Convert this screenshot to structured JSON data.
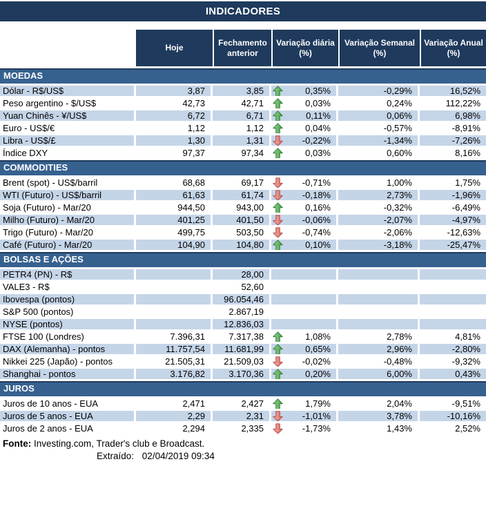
{
  "title": "INDICADORES",
  "columns": [
    "Hoje",
    "Fechamento anterior",
    "Variação diária (%)",
    "Variação Semanal (%)",
    "Variação Anual (%)"
  ],
  "sections": [
    {
      "name": "MOEDAS",
      "rows": [
        {
          "label": "Dólar - R$/US$",
          "hoje": "3,87",
          "fechamento": "3,85",
          "arrow": "up",
          "diaria": "0,35%",
          "semanal": "-0,29%",
          "anual": "16,52%"
        },
        {
          "label": "Peso argentino - $/US$",
          "hoje": "42,73",
          "fechamento": "42,71",
          "arrow": "up",
          "diaria": "0,03%",
          "semanal": "0,24%",
          "anual": "112,22%"
        },
        {
          "label": "Yuan Chinês - ¥/US$",
          "hoje": "6,72",
          "fechamento": "6,71",
          "arrow": "up",
          "diaria": "0,11%",
          "semanal": "0,06%",
          "anual": "6,98%"
        },
        {
          "label": "Euro - US$/€",
          "hoje": "1,12",
          "fechamento": "1,12",
          "arrow": "up",
          "diaria": "0,04%",
          "semanal": "-0,57%",
          "anual": "-8,91%"
        },
        {
          "label": "Libra - US$/£",
          "hoje": "1,30",
          "fechamento": "1,31",
          "arrow": "down",
          "diaria": "-0,22%",
          "semanal": "-1,34%",
          "anual": "-7,26%"
        },
        {
          "label": "Índice DXY",
          "hoje": "97,37",
          "fechamento": "97,34",
          "arrow": "up",
          "diaria": "0,03%",
          "semanal": "0,60%",
          "anual": "8,16%"
        }
      ]
    },
    {
      "name": "COMMODITIES",
      "rows": [
        {
          "label": "Brent (spot) - US$/barril",
          "hoje": "68,68",
          "fechamento": "69,17",
          "arrow": "down",
          "diaria": "-0,71%",
          "semanal": "1,00%",
          "anual": "1,75%"
        },
        {
          "label": "WTI (Futuro) - US$/barril",
          "hoje": "61,63",
          "fechamento": "61,74",
          "arrow": "down",
          "diaria": "-0,18%",
          "semanal": "2,73%",
          "anual": "-1,96%"
        },
        {
          "label": "Soja (Futuro) - Mar/20",
          "hoje": "944,50",
          "fechamento": "943,00",
          "arrow": "up",
          "diaria": "0,16%",
          "semanal": "-0,32%",
          "anual": "-6,49%"
        },
        {
          "label": "Milho (Futuro) - Mar/20",
          "hoje": "401,25",
          "fechamento": "401,50",
          "arrow": "down",
          "diaria": "-0,06%",
          "semanal": "-2,07%",
          "anual": "-4,97%"
        },
        {
          "label": "Trigo (Futuro) - Mar/20",
          "hoje": "499,75",
          "fechamento": "503,50",
          "arrow": "down",
          "diaria": "-0,74%",
          "semanal": "-2,06%",
          "anual": "-12,63%"
        },
        {
          "label": "Café (Futuro) - Mar/20",
          "hoje": "104,90",
          "fechamento": "104,80",
          "arrow": "up",
          "diaria": "0,10%",
          "semanal": "-3,18%",
          "anual": "-25,47%"
        }
      ]
    },
    {
      "name": "BOLSAS E AÇÕES",
      "rows": [
        {
          "label": "PETR4 (PN) - R$",
          "hoje": "",
          "fechamento": "28,00",
          "arrow": null,
          "diaria": "",
          "semanal": "",
          "anual": ""
        },
        {
          "label": "VALE3 - R$",
          "hoje": "",
          "fechamento": "52,60",
          "arrow": null,
          "diaria": "",
          "semanal": "",
          "anual": ""
        },
        {
          "label": "Ibovespa (pontos)",
          "hoje": "",
          "fechamento": "96.054,46",
          "arrow": null,
          "diaria": "",
          "semanal": "",
          "anual": ""
        },
        {
          "label": "S&P 500 (pontos)",
          "hoje": "",
          "fechamento": "2.867,19",
          "arrow": null,
          "diaria": "",
          "semanal": "",
          "anual": ""
        },
        {
          "label": "NYSE (pontos)",
          "hoje": "",
          "fechamento": "12.836,03",
          "arrow": null,
          "diaria": "",
          "semanal": "",
          "anual": ""
        },
        {
          "label": "FTSE 100 (Londres)",
          "hoje": "7.396,31",
          "fechamento": "7.317,38",
          "arrow": "up",
          "diaria": "1,08%",
          "semanal": "2,78%",
          "anual": "4,81%"
        },
        {
          "label": "DAX (Alemanha) - pontos",
          "hoje": "11.757,54",
          "fechamento": "11.681,99",
          "arrow": "up",
          "diaria": "0,65%",
          "semanal": "2,96%",
          "anual": "-2,80%"
        },
        {
          "label": "Nikkei 225 (Japão) - pontos",
          "hoje": "21.505,31",
          "fechamento": "21.509,03",
          "arrow": "down",
          "diaria": "-0,02%",
          "semanal": "-0,48%",
          "anual": "-9,32%"
        },
        {
          "label": "Shanghai - pontos",
          "hoje": "3.176,82",
          "fechamento": "3.170,36",
          "arrow": "up",
          "diaria": "0,20%",
          "semanal": "6,00%",
          "anual": "0,43%"
        }
      ]
    },
    {
      "name": "JUROS",
      "rows": [
        {
          "label": "Juros de 10 anos - EUA",
          "hoje": "2,471",
          "fechamento": "2,427",
          "arrow": "up",
          "diaria": "1,79%",
          "semanal": "2,04%",
          "anual": "-9,51%"
        },
        {
          "label": "Juros de 5 anos - EUA",
          "hoje": "2,29",
          "fechamento": "2,31",
          "arrow": "down",
          "diaria": "-1,01%",
          "semanal": "3,78%",
          "anual": "-10,16%"
        },
        {
          "label": "Juros de 2 anos - EUA",
          "hoje": "2,294",
          "fechamento": "2,335",
          "arrow": "down",
          "diaria": "-1,73%",
          "semanal": "1,43%",
          "anual": "2,52%"
        }
      ]
    }
  ],
  "footer": {
    "fonte_label": "Fonte:",
    "fonte_text": "Investing.com, Trader's club e Broadcast.",
    "extraido_label": "Extraído:",
    "extraido_value": "02/04/2019 09:34"
  },
  "colors": {
    "navy": "#1F3A5C",
    "section_blue": "#36618F",
    "row_blue": "#C5D5E8",
    "arrow_up_green": "#3F9E42",
    "arrow_down_red": "#D96A62"
  }
}
